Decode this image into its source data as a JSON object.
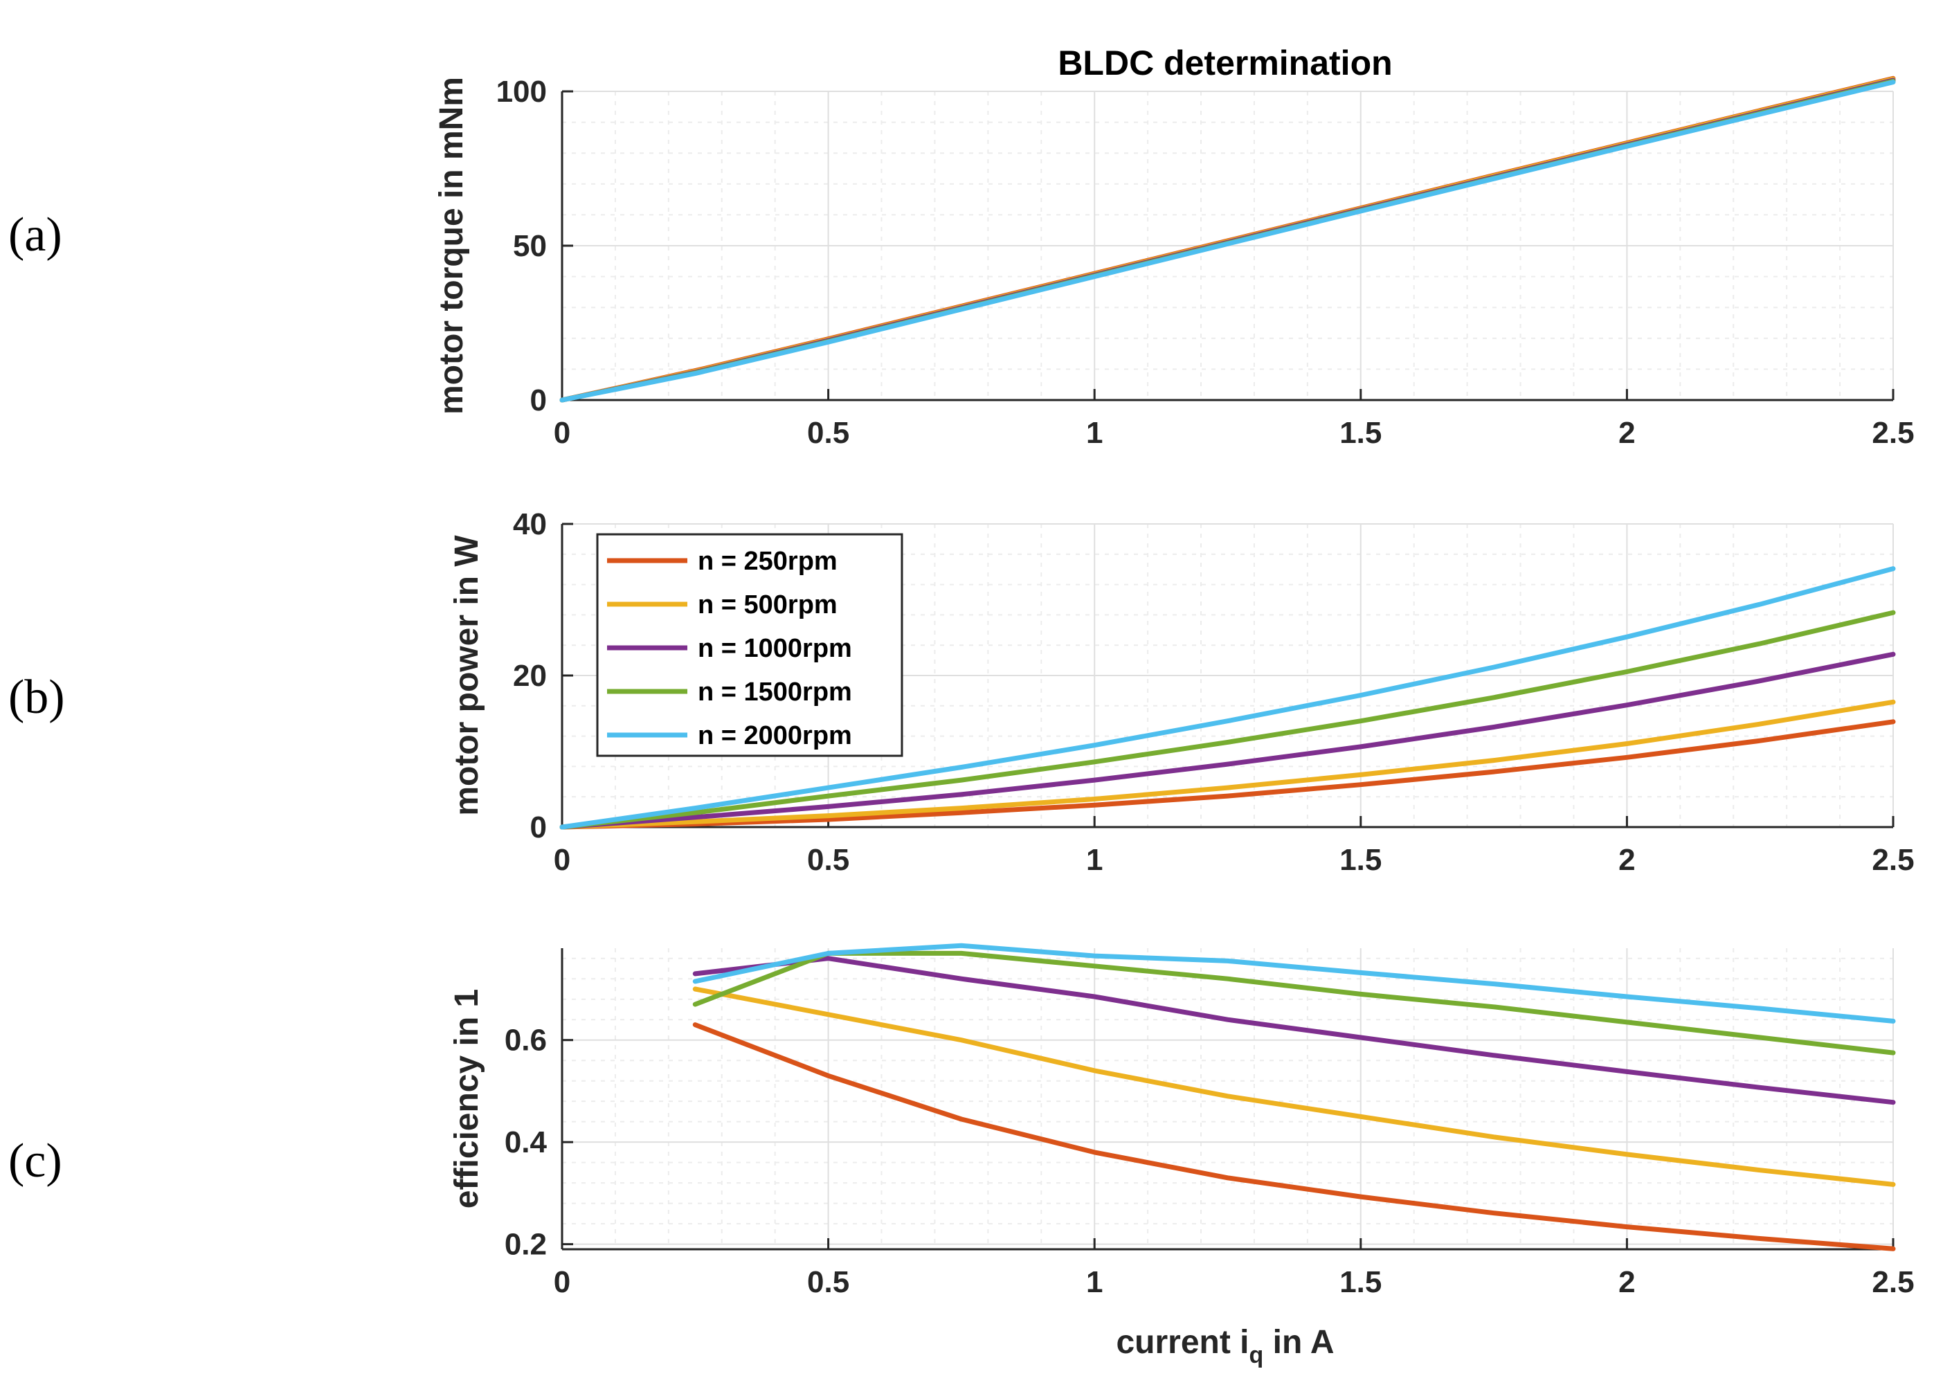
{
  "title": "BLDC determination",
  "panel_labels": [
    "(a)",
    "(b)",
    "(c)"
  ],
  "xlabel_main": "current i",
  "xlabel_sub": "q",
  "xlabel_tail": " in A",
  "legend": [
    "n = 250rpm",
    "n = 500rpm",
    "n = 1000rpm",
    "n = 1500rpm",
    "n = 2000rpm"
  ],
  "colors": {
    "n250": "#D95319",
    "n500": "#EDB120",
    "n1000": "#7E2F8E",
    "n1500": "#77AC30",
    "n2000": "#4DBEEE",
    "axis": "#262626",
    "grid_major": "#dfdfdf",
    "grid_minor": "#ececec"
  },
  "chart_data": [
    {
      "type": "line",
      "id": "torque",
      "ylabel": "motor torque in mNm",
      "xlim": [
        0,
        2.5
      ],
      "ylim": [
        0,
        100
      ],
      "xticks": [
        0,
        0.5,
        1,
        1.5,
        2,
        2.5
      ],
      "xtick_labels": [
        "0",
        "0.5",
        "1",
        "1.5",
        "2",
        "2.5"
      ],
      "yticks": [
        0,
        50,
        100
      ],
      "ytick_labels": [
        "0",
        "50",
        "100"
      ],
      "grid": true,
      "x": [
        0,
        0.25,
        0.5,
        0.75,
        1,
        1.25,
        1.5,
        1.75,
        2,
        2.25,
        2.5
      ],
      "series": [
        {
          "name": "n = 250rpm",
          "color_key": "n250",
          "values": [
            0,
            9.5,
            19.8,
            30.4,
            41.0,
            51.6,
            62.2,
            72.8,
            83.3,
            93.8,
            104.2
          ]
        },
        {
          "name": "n = 500rpm",
          "color_key": "n500",
          "values": [
            0,
            9.3,
            19.6,
            30.2,
            40.8,
            51.4,
            62.0,
            72.6,
            83.1,
            93.6,
            104.0
          ]
        },
        {
          "name": "n = 1000rpm",
          "color_key": "n1000",
          "values": [
            0,
            9.0,
            19.3,
            29.9,
            40.5,
            51.1,
            61.7,
            72.2,
            82.7,
            93.2,
            103.6
          ]
        },
        {
          "name": "n = 1500rpm",
          "color_key": "n1500",
          "values": [
            0,
            8.8,
            19.0,
            29.6,
            40.2,
            50.8,
            61.4,
            71.9,
            82.4,
            92.9,
            103.3
          ]
        },
        {
          "name": "n = 2000rpm",
          "color_key": "n2000",
          "values": [
            0,
            8.6,
            18.8,
            29.4,
            40.0,
            50.6,
            61.2,
            71.7,
            82.2,
            92.6,
            103.0
          ]
        }
      ]
    },
    {
      "type": "line",
      "id": "power",
      "ylabel": "motor power in W",
      "xlim": [
        0,
        2.5
      ],
      "ylim": [
        0,
        40
      ],
      "xticks": [
        0,
        0.5,
        1,
        1.5,
        2,
        2.5
      ],
      "xtick_labels": [
        "0",
        "0.5",
        "1",
        "1.5",
        "2",
        "2.5"
      ],
      "yticks": [
        0,
        20,
        40
      ],
      "ytick_labels": [
        "0",
        "20",
        "40"
      ],
      "grid": true,
      "legend_position": "top-left",
      "x": [
        0,
        0.25,
        0.5,
        0.75,
        1,
        1.25,
        1.5,
        1.75,
        2,
        2.25,
        2.5
      ],
      "series": [
        {
          "name": "n = 250rpm",
          "color_key": "n250",
          "values": [
            0,
            0.4,
            1.0,
            1.9,
            2.9,
            4.1,
            5.6,
            7.3,
            9.2,
            11.4,
            13.9
          ]
        },
        {
          "name": "n = 500rpm",
          "color_key": "n500",
          "values": [
            0,
            0.7,
            1.5,
            2.5,
            3.7,
            5.2,
            6.9,
            8.8,
            11.0,
            13.6,
            16.5
          ]
        },
        {
          "name": "n = 1000rpm",
          "color_key": "n1000",
          "values": [
            0,
            1.3,
            2.7,
            4.3,
            6.2,
            8.3,
            10.6,
            13.2,
            16.1,
            19.3,
            22.8
          ]
        },
        {
          "name": "n = 1500rpm",
          "color_key": "n1500",
          "values": [
            0,
            1.9,
            4.1,
            6.2,
            8.6,
            11.2,
            14.0,
            17.1,
            20.5,
            24.2,
            28.3
          ]
        },
        {
          "name": "n = 2000rpm",
          "color_key": "n2000",
          "values": [
            0,
            2.5,
            5.2,
            7.9,
            10.8,
            14.0,
            17.4,
            21.1,
            25.1,
            29.4,
            34.1
          ]
        }
      ]
    },
    {
      "type": "line",
      "id": "efficiency",
      "ylabel": "efficiency in 1",
      "xlim": [
        0,
        2.5
      ],
      "ylim": [
        0.19,
        0.78
      ],
      "xticks": [
        0,
        0.5,
        1,
        1.5,
        2,
        2.5
      ],
      "xtick_labels": [
        "0",
        "0.5",
        "1",
        "1.5",
        "2",
        "2.5"
      ],
      "yticks": [
        0.2,
        0.4,
        0.6
      ],
      "ytick_labels": [
        "0.2",
        "0.4",
        "0.6"
      ],
      "grid": true,
      "x": [
        0.25,
        0.5,
        0.75,
        1,
        1.25,
        1.5,
        1.75,
        2,
        2.25,
        2.5
      ],
      "series": [
        {
          "name": "n = 250rpm",
          "color_key": "n250",
          "values": [
            0.63,
            0.53,
            0.445,
            0.38,
            0.33,
            0.293,
            0.261,
            0.234,
            0.211,
            0.191
          ]
        },
        {
          "name": "n = 500rpm",
          "color_key": "n500",
          "values": [
            0.7,
            0.65,
            0.6,
            0.54,
            0.49,
            0.45,
            0.41,
            0.376,
            0.345,
            0.317
          ]
        },
        {
          "name": "n = 1000rpm",
          "color_key": "n1000",
          "values": [
            0.73,
            0.76,
            0.72,
            0.685,
            0.64,
            0.605,
            0.57,
            0.538,
            0.507,
            0.478
          ]
        },
        {
          "name": "n = 1500rpm",
          "color_key": "n1500",
          "values": [
            0.67,
            0.77,
            0.77,
            0.745,
            0.72,
            0.69,
            0.665,
            0.635,
            0.605,
            0.575
          ]
        },
        {
          "name": "n = 2000rpm",
          "color_key": "n2000",
          "values": [
            0.715,
            0.77,
            0.785,
            0.765,
            0.755,
            0.732,
            0.71,
            0.685,
            0.662,
            0.637
          ]
        }
      ]
    }
  ]
}
